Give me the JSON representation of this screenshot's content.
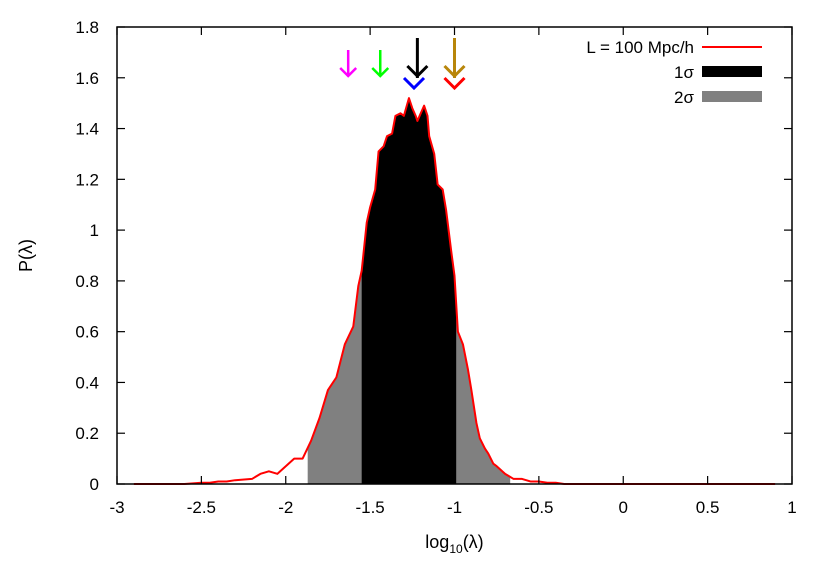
{
  "chart_data": {
    "type": "area",
    "xlabel_main": "log",
    "xlabel_sub": "10",
    "xlabel_tail": "(λ)",
    "ylabel": "P(λ)",
    "xlim": [
      -3,
      1
    ],
    "ylim": [
      0,
      1.8
    ],
    "xticks": [
      "-3",
      "-2.5",
      "-2",
      "-1.5",
      "-1",
      "-0.5",
      "0",
      "0.5",
      "1"
    ],
    "yticks": [
      "0",
      "0.2",
      "0.4",
      "0.6",
      "0.8",
      "1",
      "1.2",
      "1.4",
      "1.6",
      "1.8"
    ],
    "legend": [
      {
        "label": "L = 100 Mpc/h",
        "kind": "line",
        "color": "#ff0000"
      },
      {
        "label": "1σ",
        "kind": "band",
        "color": "#000000"
      },
      {
        "label": "2σ",
        "kind": "band",
        "color": "#808080"
      }
    ],
    "one_sigma_range": [
      -1.55,
      -0.99
    ],
    "two_sigma_range": [
      -1.87,
      -0.67
    ],
    "series": [
      {
        "x": [
          -2.9,
          -2.6,
          -2.5,
          -2.45,
          -2.4,
          -2.35,
          -2.3,
          -2.2,
          -2.15,
          -2.1,
          -2.05,
          -2.0,
          -1.95,
          -1.9,
          -1.85,
          -1.8,
          -1.75,
          -1.7,
          -1.65,
          -1.6,
          -1.57,
          -1.55,
          -1.52,
          -1.5,
          -1.47,
          -1.45,
          -1.42,
          -1.4,
          -1.37,
          -1.35,
          -1.32,
          -1.3,
          -1.27,
          -1.25,
          -1.23,
          -1.22,
          -1.2,
          -1.18,
          -1.16,
          -1.15,
          -1.12,
          -1.1,
          -1.07,
          -1.05,
          -1.02,
          -1.0,
          -0.98,
          -0.95,
          -0.92,
          -0.9,
          -0.87,
          -0.85,
          -0.82,
          -0.8,
          -0.77,
          -0.75,
          -0.7,
          -0.65,
          -0.6,
          -0.55,
          -0.5,
          -0.45,
          -0.4,
          -0.35,
          -0.3,
          -0.2,
          0.0,
          0.2,
          0.5,
          0.9
        ],
        "y": [
          0.0,
          0.0,
          0.005,
          0.005,
          0.01,
          0.01,
          0.015,
          0.02,
          0.04,
          0.05,
          0.04,
          0.07,
          0.1,
          0.1,
          0.17,
          0.26,
          0.37,
          0.42,
          0.55,
          0.62,
          0.78,
          0.84,
          1.03,
          1.09,
          1.16,
          1.31,
          1.33,
          1.37,
          1.38,
          1.45,
          1.46,
          1.45,
          1.52,
          1.48,
          1.45,
          1.43,
          1.46,
          1.49,
          1.45,
          1.37,
          1.3,
          1.18,
          1.16,
          1.08,
          0.92,
          0.82,
          0.6,
          0.55,
          0.45,
          0.37,
          0.24,
          0.18,
          0.14,
          0.12,
          0.08,
          0.07,
          0.04,
          0.02,
          0.02,
          0.01,
          0.01,
          0.005,
          0.005,
          0.0,
          0.0,
          0.0,
          0.0,
          0.0,
          0.0,
          0.0
        ]
      }
    ],
    "markers": [
      {
        "x": -1.63,
        "color": "#ff00ff",
        "style": "single"
      },
      {
        "x": -1.44,
        "color": "#00ff00",
        "style": "single"
      },
      {
        "x": -1.22,
        "color": "#000000",
        "style": "long"
      },
      {
        "x": -1.24,
        "color": "#0000ff",
        "style": "head"
      },
      {
        "x": -1.0,
        "color": "#b8860b",
        "style": "long"
      },
      {
        "x": -1.0,
        "color": "#ff0000",
        "style": "head"
      }
    ]
  }
}
